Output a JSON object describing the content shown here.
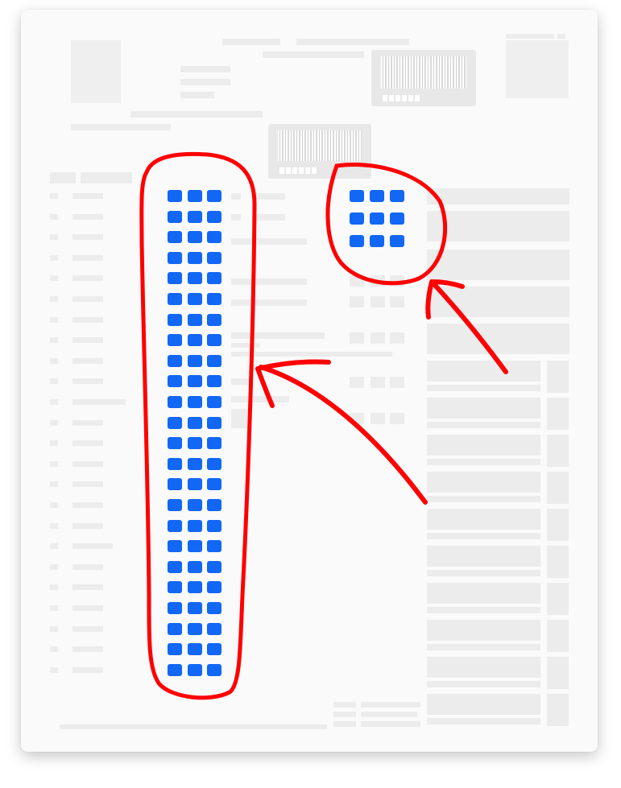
{
  "document": {
    "background": "#fafafa",
    "placeholder_color": "#ececec"
  },
  "grids": {
    "cell_color": "#1267f5",
    "main_column": {
      "columns": 3,
      "rows": 24
    },
    "small_block": {
      "columns": 3,
      "rows": 3
    }
  },
  "annotations": {
    "color": "#ff0000",
    "icons": [
      "oval-outline",
      "circle-outline",
      "arrow-left",
      "arrow-up-left"
    ]
  }
}
